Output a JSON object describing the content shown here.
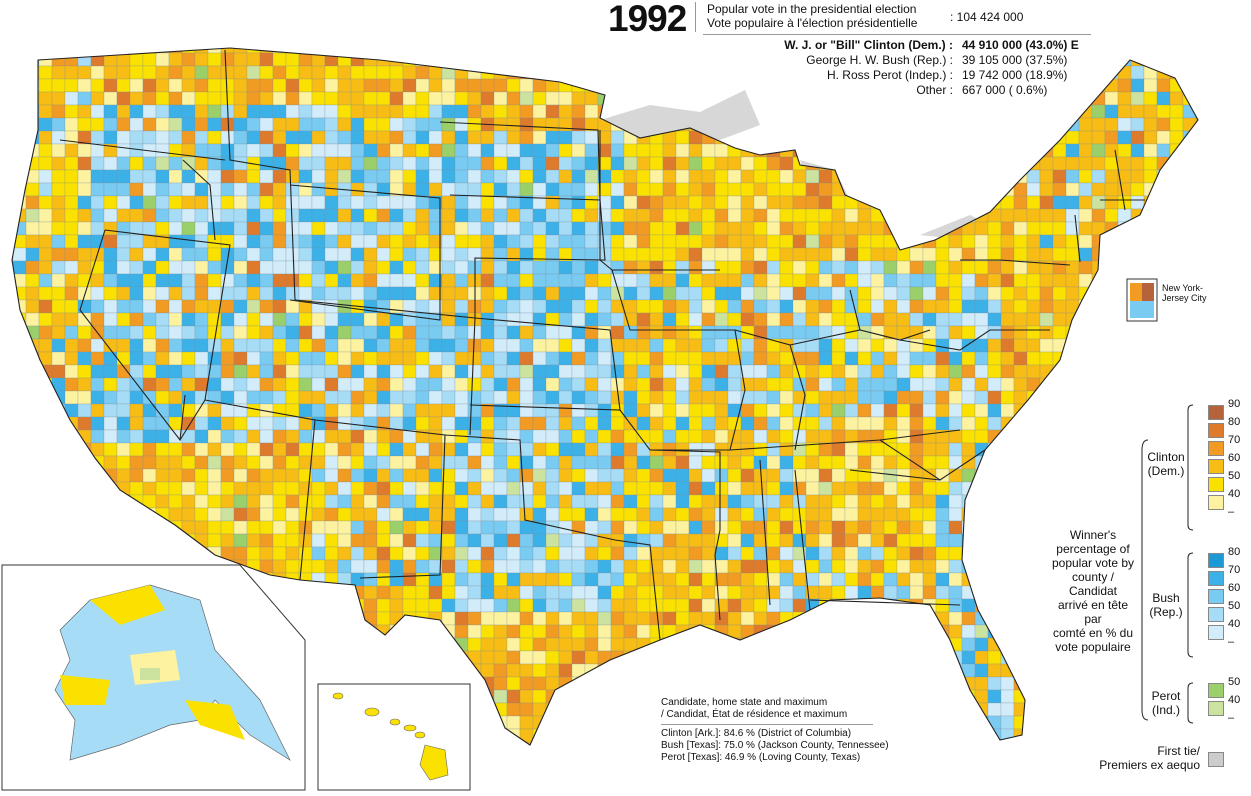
{
  "title": {
    "year": "1992",
    "popular_vote_en": "Popular vote in the presidential election",
    "popular_vote_fr": "Vote populaire à l'élection présidentielle",
    "popular_vote_total": "104 424 000"
  },
  "results": [
    {
      "name": "W. J. or \"Bill\" Clinton (Dem.) :",
      "votes": "44 910 000  (43.0%) E",
      "bold": true
    },
    {
      "name": "George H. W. Bush (Rep.) :",
      "votes": "39 105 000  (37.5%)",
      "bold": false
    },
    {
      "name": "H. Ross Perot (Indep.) :",
      "votes": "19 742 000  (18.9%)",
      "bold": false
    },
    {
      "name": "Other :",
      "votes": "667 000  (  0.6%)",
      "bold": false
    }
  ],
  "legend": {
    "title": "Winner's percentage of popular vote by county / Candidat arrivé en tête par comté en % du vote populaire",
    "title_lines": [
      "Winner's",
      "percentage of",
      "popular vote by",
      "county / Candidat",
      "arrivé en tête par",
      "comté en % du",
      "vote populaire"
    ],
    "clinton": {
      "label_lines": [
        "Clinton",
        "(Dem.)"
      ],
      "ticks": [
        "90",
        "80",
        "70",
        "60",
        "50",
        "40",
        "–"
      ],
      "colors": [
        "#b5633a",
        "#de7a2c",
        "#f29b22",
        "#f8bd14",
        "#fbe100",
        "#fdf2a0"
      ]
    },
    "bush": {
      "label_lines": [
        "Bush",
        "(Rep.)"
      ],
      "ticks": [
        "80",
        "70",
        "60",
        "50",
        "40",
        "–"
      ],
      "colors": [
        "#1d9ad6",
        "#3cb1e8",
        "#7acbf2",
        "#a7dcf6",
        "#d2ecfa"
      ]
    },
    "perot": {
      "label_lines": [
        "Perot",
        "(Ind.)"
      ],
      "ticks": [
        "50",
        "40",
        "–"
      ],
      "colors": [
        "#9bcf6a",
        "#cce3a0"
      ]
    },
    "tie": {
      "label_lines": [
        "First tie/",
        "Premiers ex aequo"
      ],
      "color": "#cccccc"
    }
  },
  "notes": {
    "header_lines": [
      "Candidate, home state and maximum",
      "/ Candidat, État de résidence et maximum"
    ],
    "rows": [
      "Clinton [Ark.]:  84.6 % (District of Columbia)",
      "Bush [Texas]:  75.0 % (Jackson County, Tennessee)",
      "Perot [Texas]:  46.9 % (Loving County, Texas)"
    ]
  },
  "inset_label_lines": [
    "New York-",
    "Jersey City"
  ]
}
